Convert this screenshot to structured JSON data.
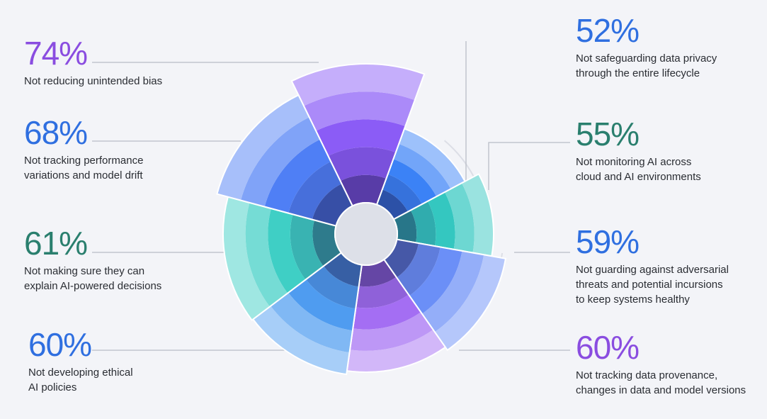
{
  "chart_data": {
    "type": "polar-area",
    "title": "",
    "unit": "%",
    "slices": [
      {
        "id": "bias",
        "value": 74,
        "label": "74%",
        "description": "Not reducing unintended bias",
        "color": "#8b5cf6",
        "label_color": "#8a4de0"
      },
      {
        "id": "privacy",
        "value": 52,
        "label": "52%",
        "description": "Not safeguarding data privacy\nthrough the entire lifecycle",
        "color": "#3b82f6",
        "label_color": "#2f6fe0"
      },
      {
        "id": "monitoring",
        "value": 55,
        "label": "55%",
        "description": "Not monitoring AI across\ncloud and AI environments",
        "color": "#34c7c0",
        "label_color": "#2a7f6e"
      },
      {
        "id": "adversarial",
        "value": 59,
        "label": "59%",
        "description": "Not guarding against adversarial\nthreats and potential incursions\nto keep systems healthy",
        "color": "#6b8ff7",
        "label_color": "#2f6fe0"
      },
      {
        "id": "provenance",
        "value": 60,
        "label": "60%",
        "description": "Not tracking data provenance,\nchanges in data and model versions",
        "color": "#a46ef3",
        "label_color": "#8a4de0"
      },
      {
        "id": "ethics",
        "value": 60,
        "label": "60%",
        "description": "Not developing ethical\nAI policies",
        "color": "#4f9cf0",
        "label_color": "#2f6fe0"
      },
      {
        "id": "explain",
        "value": 61,
        "label": "61%",
        "description": "Not making sure they can\nexplain AI-powered decisions",
        "color": "#3fcfc5",
        "label_color": "#2a7f6e"
      },
      {
        "id": "drift",
        "value": 68,
        "label": "68%",
        "description": "Not tracking performance\nvariations and model drift",
        "color": "#4f7ff5",
        "label_color": "#2f6fe0"
      }
    ]
  }
}
